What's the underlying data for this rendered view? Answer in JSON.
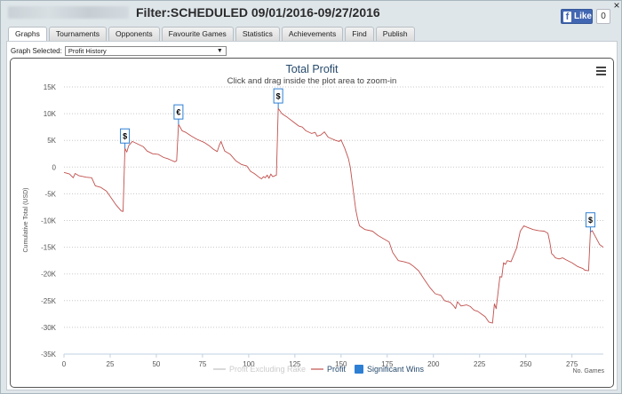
{
  "window": {
    "title": "Filter:SCHEDULED 09/01/2016-09/27/2016",
    "like_label": "Like",
    "like_count": "0",
    "close_label": "×"
  },
  "tabs": [
    {
      "label": "Graphs",
      "active": true
    },
    {
      "label": "Tournaments",
      "active": false
    },
    {
      "label": "Opponents",
      "active": false
    },
    {
      "label": "Favourite Games",
      "active": false
    },
    {
      "label": "Statistics",
      "active": false
    },
    {
      "label": "Achievements",
      "active": false
    },
    {
      "label": "Find",
      "active": false
    },
    {
      "label": "Publish",
      "active": false
    }
  ],
  "graph_selector": {
    "label": "Graph Selected:",
    "value": "Profit History",
    "arrow": "▼"
  },
  "chart_data": {
    "type": "line",
    "title": "Total Profit",
    "subtitle": "Click and drag inside the plot area to zoom-in",
    "xlabel": "No. Games",
    "ylabel": "Cumulative Total (USD)",
    "xlim": [
      0,
      292
    ],
    "ylim": [
      -35000,
      15000
    ],
    "x_ticks": [
      0,
      25,
      50,
      75,
      100,
      125,
      150,
      175,
      200,
      225,
      250,
      275
    ],
    "y_ticks": [
      {
        "value": 15000,
        "label": "15K"
      },
      {
        "value": 10000,
        "label": "10K"
      },
      {
        "value": 5000,
        "label": "5K"
      },
      {
        "value": 0,
        "label": "0"
      },
      {
        "value": -5000,
        "label": "-5K"
      },
      {
        "value": -10000,
        "label": "-10K"
      },
      {
        "value": -15000,
        "label": "-15K"
      },
      {
        "value": -20000,
        "label": "-20K"
      },
      {
        "value": -25000,
        "label": "-25K"
      },
      {
        "value": -30000,
        "label": "-30K"
      },
      {
        "value": -35000,
        "label": "-35K"
      }
    ],
    "grid": true,
    "legend_position": "bottom",
    "series": [
      {
        "name": "Profit Excluding Rake",
        "color": "#cccccc",
        "visible": false,
        "points": []
      },
      {
        "name": "Profit",
        "color": "#c0504d",
        "visible": true,
        "points": [
          [
            0,
            -1000
          ],
          [
            3,
            -1300
          ],
          [
            5,
            -2000
          ],
          [
            6,
            -1200
          ],
          [
            8,
            -1600
          ],
          [
            12,
            -1900
          ],
          [
            15,
            -2000
          ],
          [
            17,
            -3500
          ],
          [
            20,
            -3800
          ],
          [
            23,
            -4500
          ],
          [
            25,
            -5500
          ],
          [
            28,
            -7000
          ],
          [
            31,
            -8200
          ],
          [
            32,
            -8300
          ],
          [
            33,
            3500
          ],
          [
            34,
            2800
          ],
          [
            35,
            4000
          ],
          [
            37,
            4800
          ],
          [
            40,
            4300
          ],
          [
            43,
            3800
          ],
          [
            45,
            3000
          ],
          [
            48,
            2500
          ],
          [
            51,
            2400
          ],
          [
            54,
            1800
          ],
          [
            56,
            1600
          ],
          [
            58,
            1300
          ],
          [
            60,
            1000
          ],
          [
            61,
            1200
          ],
          [
            62,
            8000
          ],
          [
            64,
            6800
          ],
          [
            66,
            6500
          ],
          [
            69,
            5800
          ],
          [
            72,
            5200
          ],
          [
            76,
            4600
          ],
          [
            79,
            3900
          ],
          [
            81,
            3300
          ],
          [
            83,
            2900
          ],
          [
            84,
            4000
          ],
          [
            85,
            4800
          ],
          [
            87,
            3000
          ],
          [
            90,
            2400
          ],
          [
            93,
            1200
          ],
          [
            96,
            500
          ],
          [
            99,
            200
          ],
          [
            101,
            -800
          ],
          [
            103,
            -1200
          ],
          [
            106,
            -2000
          ],
          [
            107,
            -2200
          ],
          [
            108,
            -1800
          ],
          [
            109,
            -2000
          ],
          [
            110,
            -1500
          ],
          [
            111,
            -2100
          ],
          [
            112,
            -1300
          ],
          [
            113,
            -1800
          ],
          [
            115,
            -1500
          ],
          [
            116,
            11000
          ],
          [
            118,
            10000
          ],
          [
            121,
            9300
          ],
          [
            124,
            8500
          ],
          [
            127,
            7700
          ],
          [
            129,
            7500
          ],
          [
            131,
            6800
          ],
          [
            134,
            6300
          ],
          [
            136,
            6500
          ],
          [
            137,
            5800
          ],
          [
            139,
            6000
          ],
          [
            141,
            6600
          ],
          [
            143,
            5600
          ],
          [
            145,
            5300
          ],
          [
            147,
            5000
          ],
          [
            149,
            4800
          ],
          [
            150,
            5100
          ],
          [
            152,
            3500
          ],
          [
            154,
            1600
          ],
          [
            155,
            0
          ],
          [
            158,
            -8000
          ],
          [
            159,
            -9700
          ],
          [
            160,
            -11000
          ],
          [
            163,
            -11700
          ],
          [
            167,
            -12000
          ],
          [
            170,
            -12800
          ],
          [
            173,
            -13400
          ],
          [
            176,
            -14000
          ],
          [
            178,
            -16000
          ],
          [
            181,
            -17500
          ],
          [
            184,
            -17700
          ],
          [
            187,
            -18000
          ],
          [
            189,
            -18500
          ],
          [
            192,
            -19400
          ],
          [
            195,
            -21000
          ],
          [
            198,
            -22500
          ],
          [
            201,
            -23700
          ],
          [
            204,
            -24000
          ],
          [
            206,
            -25000
          ],
          [
            209,
            -25300
          ],
          [
            211,
            -26000
          ],
          [
            212,
            -26500
          ],
          [
            213,
            -25200
          ],
          [
            215,
            -26000
          ],
          [
            218,
            -25800
          ],
          [
            220,
            -26100
          ],
          [
            222,
            -26800
          ],
          [
            224,
            -27000
          ],
          [
            226,
            -27500
          ],
          [
            228,
            -28000
          ],
          [
            230,
            -29000
          ],
          [
            232,
            -29200
          ],
          [
            233,
            -25600
          ],
          [
            234,
            -26500
          ],
          [
            236,
            -20500
          ],
          [
            237,
            -20600
          ],
          [
            238,
            -17900
          ],
          [
            239,
            -18200
          ],
          [
            240,
            -17500
          ],
          [
            242,
            -17700
          ],
          [
            245,
            -15200
          ],
          [
            247,
            -12000
          ],
          [
            249,
            -11000
          ],
          [
            251,
            -11300
          ],
          [
            254,
            -11700
          ],
          [
            257,
            -11900
          ],
          [
            260,
            -12000
          ],
          [
            262,
            -12400
          ],
          [
            263,
            -14000
          ],
          [
            264,
            -16200
          ],
          [
            265,
            -16500
          ],
          [
            266,
            -17000
          ],
          [
            268,
            -17200
          ],
          [
            270,
            -17000
          ],
          [
            272,
            -17400
          ],
          [
            275,
            -17900
          ],
          [
            278,
            -18600
          ],
          [
            281,
            -19000
          ],
          [
            282,
            -19300
          ],
          [
            284,
            -19400
          ],
          [
            285,
            -12200
          ],
          [
            286,
            -11900
          ],
          [
            288,
            -13200
          ],
          [
            290,
            -14500
          ],
          [
            292,
            -15000
          ]
        ]
      }
    ],
    "significant_wins_legend": {
      "name": "Significant Wins",
      "color": "#2d7fd3"
    },
    "flags": [
      {
        "x": 33,
        "y": 3500,
        "label": "$"
      },
      {
        "x": 62,
        "y": 8000,
        "label": "€"
      },
      {
        "x": 116,
        "y": 11000,
        "label": "$"
      },
      {
        "x": 285,
        "y": -12200,
        "label": "$"
      }
    ],
    "menu_icon": "hamburger-icon"
  }
}
